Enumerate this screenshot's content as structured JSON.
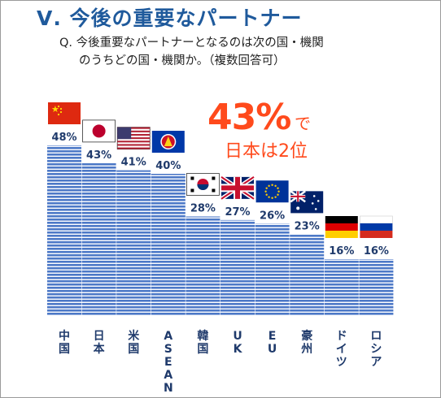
{
  "slide": {
    "title": "Ⅴ. 今後の重要なパートナー",
    "question_line_1": "Q.  今後重要なパートナーとなるのは次の国・機関",
    "question_line_2": "のうちどの国・機関か。（複数回答可）",
    "callout_percent": "43%",
    "callout_suffix": "で",
    "callout_rank": "日本は2位"
  },
  "colors": {
    "title": "#1f5a9c",
    "value_label": "#1f3a6b",
    "category_label": "#1f3a6b",
    "bar_stripe": "#4d79c7",
    "bar_gap": "#ffffff",
    "callout": "#ff4a1c"
  },
  "chart_data": {
    "type": "bar",
    "categories": [
      "中国",
      "日本",
      "米国",
      "ASEAN",
      "韓国",
      "UK",
      "EU",
      "豪州",
      "ドイツ",
      "ロシア"
    ],
    "values": [
      48,
      43,
      41,
      40,
      28,
      27,
      26,
      23,
      16,
      16
    ],
    "value_labels": [
      "48%",
      "43%",
      "41%",
      "40%",
      "28%",
      "27%",
      "26%",
      "23%",
      "16%",
      "16%"
    ],
    "flags": [
      "china-flag",
      "japan-flag",
      "usa-flag",
      "asean-flag",
      "korea-flag",
      "uk-flag",
      "eu-flag",
      "australia-flag",
      "germany-flag",
      "russia-flag"
    ],
    "value_unit": "%",
    "ylim": [
      0,
      48
    ],
    "grid": false,
    "legend": "none"
  }
}
